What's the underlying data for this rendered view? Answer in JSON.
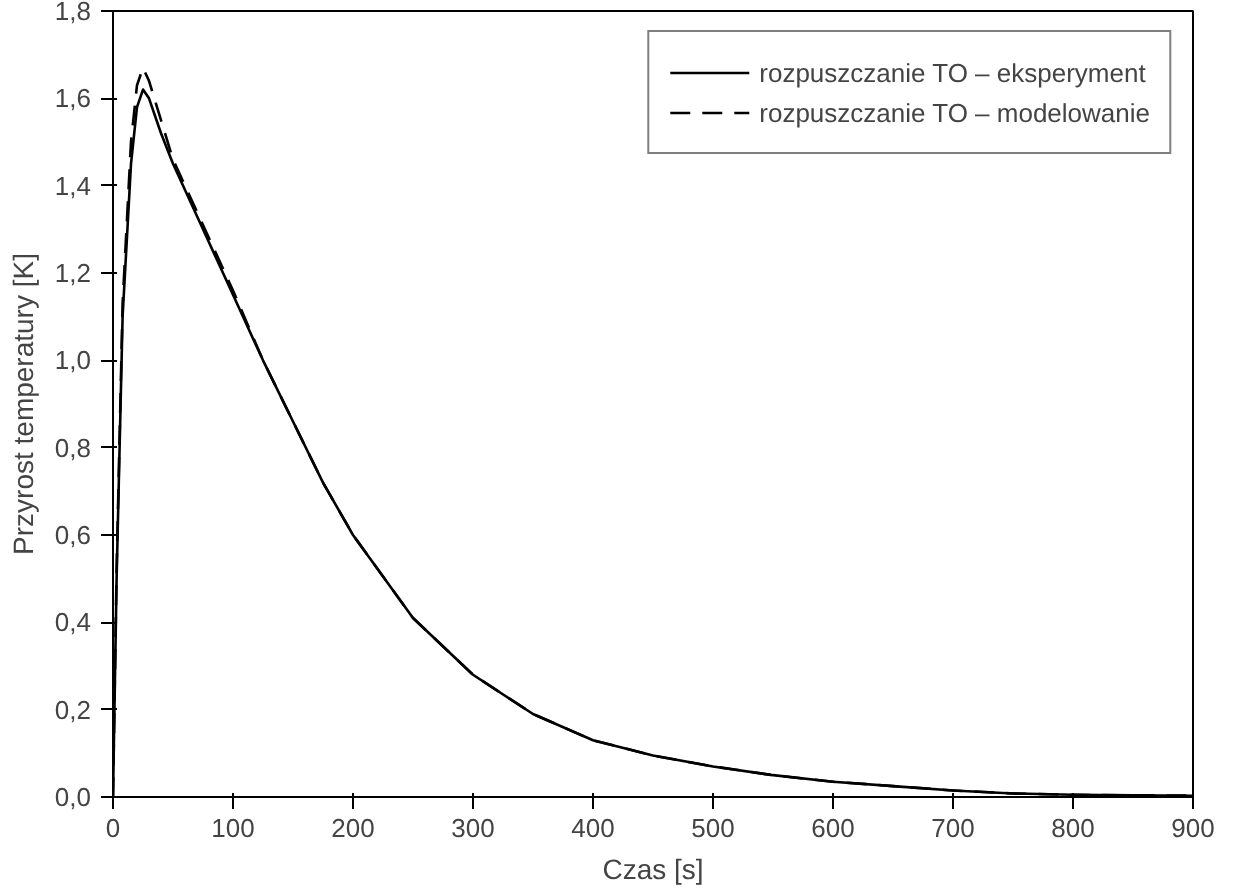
{
  "chart_data": {
    "type": "line",
    "xlabel": "Czas [s]",
    "ylabel": "Przyrost temperatury [K]",
    "xlim": [
      0,
      900
    ],
    "ylim": [
      0,
      1.8
    ],
    "xticks": [
      0,
      100,
      200,
      300,
      400,
      500,
      600,
      700,
      800,
      900
    ],
    "yticks": [
      {
        "value": 0,
        "label": "0,0"
      },
      {
        "value": 0.2,
        "label": "0,2"
      },
      {
        "value": 0.4,
        "label": "0,4"
      },
      {
        "value": 0.6,
        "label": "0,6"
      },
      {
        "value": 0.8,
        "label": "0,8"
      },
      {
        "value": 1.0,
        "label": "1,0"
      },
      {
        "value": 1.2,
        "label": "1,2"
      },
      {
        "value": 1.4,
        "label": "1,4"
      },
      {
        "value": 1.6,
        "label": "1,6"
      },
      {
        "value": 1.8,
        "label": "1,8"
      }
    ],
    "grid": false,
    "legend": "top right",
    "x": [
      0,
      3,
      8,
      15,
      20,
      25,
      30,
      40,
      50,
      75,
      100,
      125,
      150,
      175,
      200,
      250,
      300,
      350,
      400,
      450,
      500,
      550,
      600,
      650,
      700,
      750,
      800,
      850,
      900
    ],
    "series": [
      {
        "name": "rozpuszczanie TO – eksperyment",
        "color": "#000000",
        "line_style": "solid",
        "values": [
          0,
          0.5,
          1.1,
          1.45,
          1.58,
          1.62,
          1.6,
          1.52,
          1.45,
          1.3,
          1.15,
          1.0,
          0.86,
          0.72,
          0.6,
          0.41,
          0.28,
          0.19,
          0.13,
          0.095,
          0.07,
          0.05,
          0.035,
          0.025,
          0.015,
          0.008,
          0.005,
          0.004,
          0.003
        ]
      },
      {
        "name": "rozpuszczanie TO – modelowanie",
        "color": "#000000",
        "line_style": "dashed",
        "values": [
          0,
          0.52,
          1.13,
          1.5,
          1.63,
          1.67,
          1.64,
          1.55,
          1.46,
          1.31,
          1.16,
          1.0,
          0.86,
          0.72,
          0.6,
          0.41,
          0.28,
          0.19,
          0.13,
          0.095,
          0.07,
          0.05,
          0.035,
          0.025,
          0.015,
          0.008,
          0.005,
          0.004,
          0.003
        ]
      }
    ]
  }
}
